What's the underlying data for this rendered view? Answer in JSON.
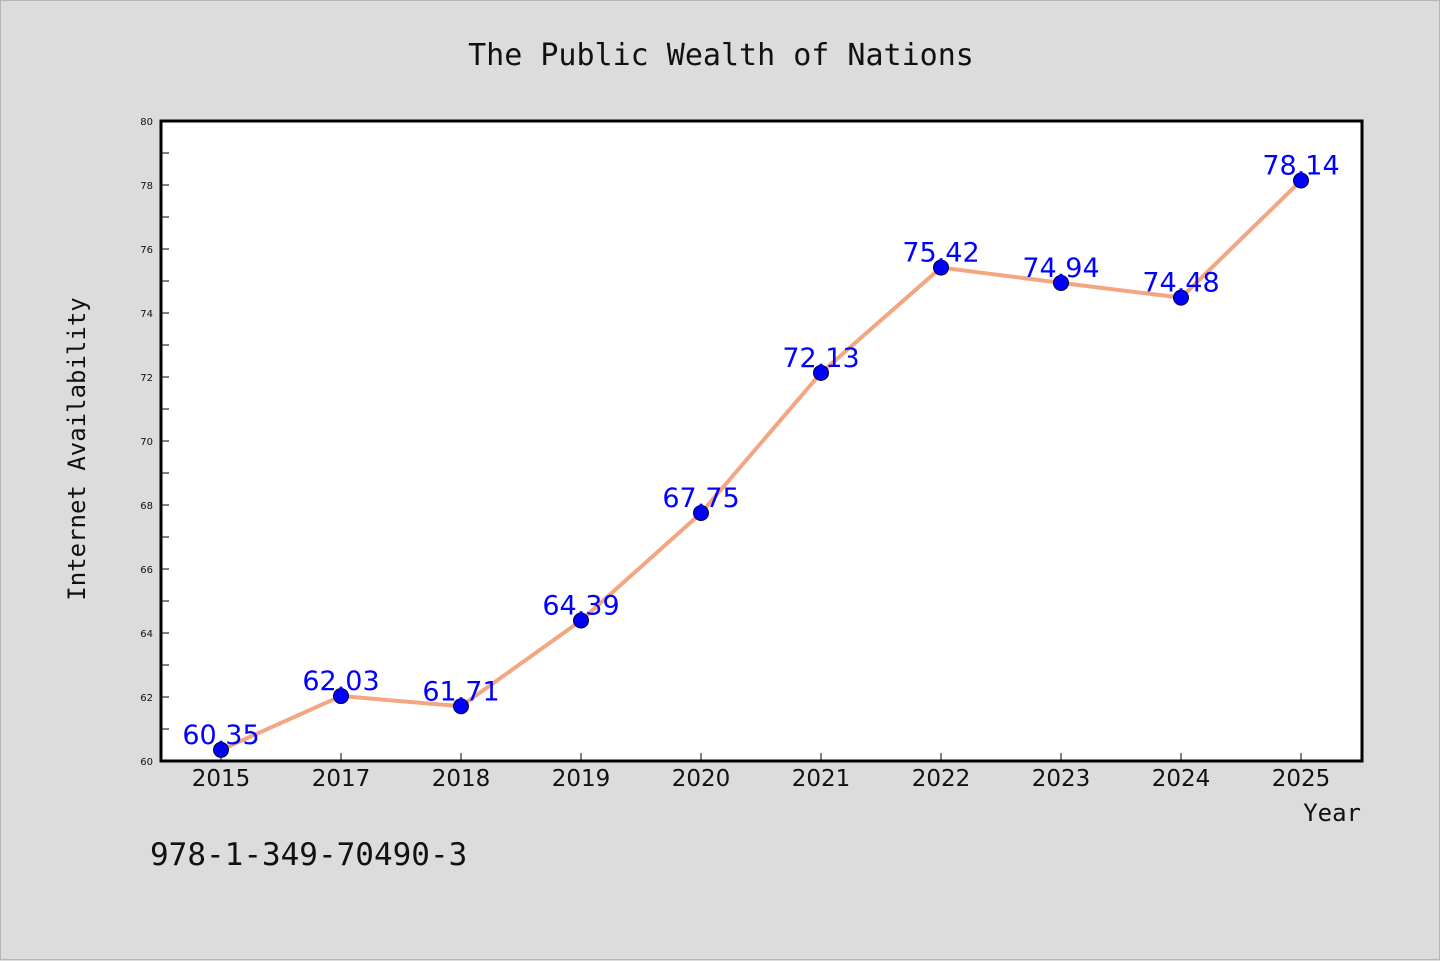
{
  "chart_data": {
    "type": "line",
    "title": "The Public Wealth of Nations",
    "xlabel": "Year",
    "ylabel": "Internet Availability",
    "categories": [
      "2015",
      "2017",
      "2018",
      "2019",
      "2020",
      "2021",
      "2022",
      "2023",
      "2024",
      "2025"
    ],
    "series": [
      {
        "values": [
          60.35,
          62.03,
          61.71,
          64.39,
          67.75,
          72.13,
          75.42,
          74.94,
          74.48,
          78.14
        ]
      }
    ],
    "data_labels": [
      "60.35",
      "62.03",
      "61.71",
      "64.39",
      "67.75",
      "72.13",
      "75.42",
      "74.94",
      "74.48",
      "78.14"
    ],
    "ylim": [
      60,
      80
    ],
    "yticks": [
      "60",
      "62",
      "64",
      "66",
      "68",
      "70",
      "72",
      "74",
      "76",
      "78",
      "80"
    ],
    "grid": false,
    "line_color": "#f4a582",
    "marker_color": "#0000ff",
    "label_color": "#0000ff",
    "background": "#dcdcdc",
    "plot_background": "#ffffff"
  },
  "footnote": "978-1-349-70490-3"
}
